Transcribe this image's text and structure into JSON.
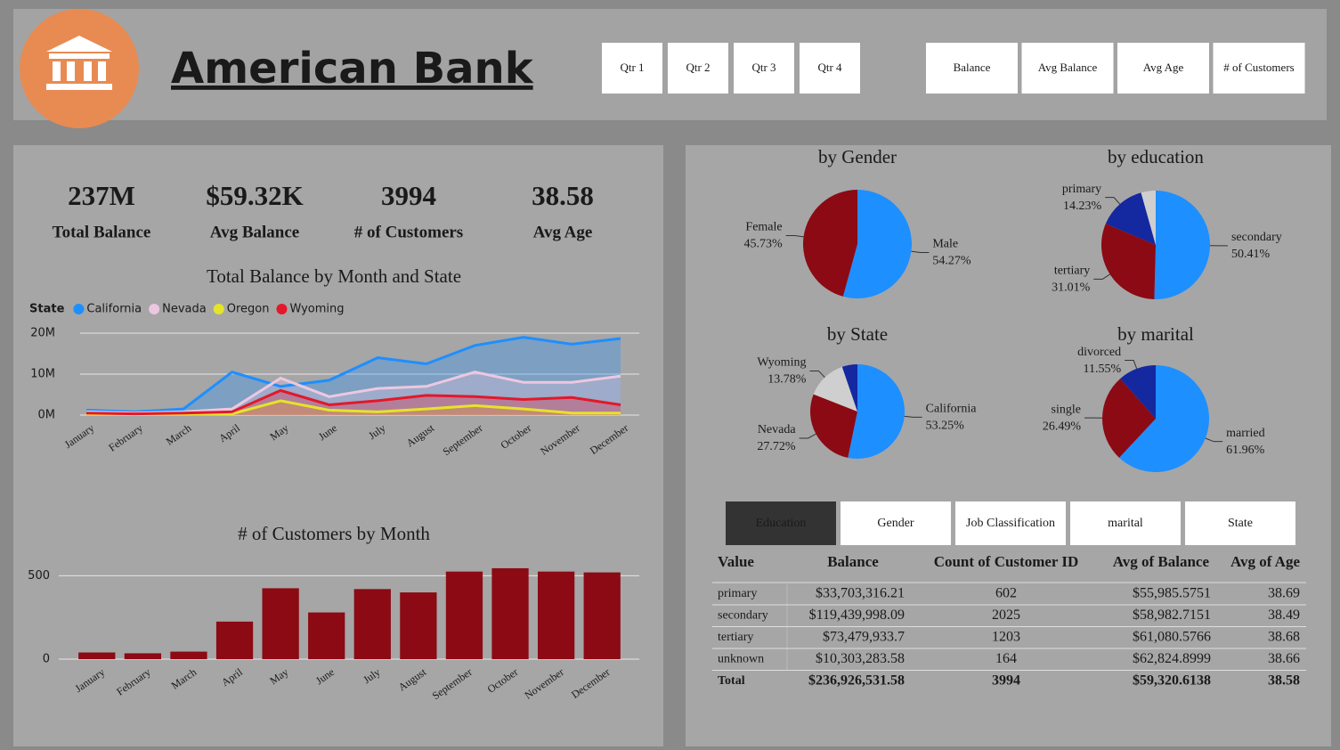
{
  "header": {
    "title": "American Bank"
  },
  "quarter_buttons": [
    "Qtr 1",
    "Qtr 2",
    "Qtr 3",
    "Qtr 4"
  ],
  "measure_buttons": [
    "Balance",
    "Avg Balance",
    "Avg Age",
    "# of Customers"
  ],
  "kpis": [
    {
      "value": "237M",
      "label": "Total Balance"
    },
    {
      "value": "$59.32K",
      "label": "Avg Balance"
    },
    {
      "value": "3994",
      "label": "# of Customers"
    },
    {
      "value": "38.58",
      "label": "Avg Age"
    }
  ],
  "chart_data": [
    {
      "type": "area",
      "title": "Total Balance by Month and State",
      "legend_title": "State",
      "categories": [
        "January",
        "February",
        "March",
        "April",
        "May",
        "June",
        "July",
        "August",
        "September",
        "October",
        "November",
        "December"
      ],
      "ylim": [
        0,
        20
      ],
      "yticks": [
        {
          "value": 0,
          "label": "0M"
        },
        {
          "value": 10,
          "label": "10M"
        },
        {
          "value": 20,
          "label": "20M"
        }
      ],
      "grid": true,
      "series": [
        {
          "name": "California",
          "color": "#1e8fff",
          "values": [
            1.2,
            0.8,
            1.5,
            10.5,
            7,
            8.5,
            14,
            12.5,
            17,
            19,
            17.3,
            18.7
          ]
        },
        {
          "name": "Nevada",
          "color": "#ecc8e0",
          "values": [
            0.8,
            0.5,
            0.8,
            1.5,
            9,
            4.5,
            6.5,
            7,
            10.5,
            8,
            8,
            9.5
          ]
        },
        {
          "name": "Oregon",
          "color": "#e4e42a",
          "values": [
            0.2,
            0.1,
            0.2,
            0.3,
            3.5,
            1.2,
            0.8,
            1.5,
            2.3,
            1.5,
            0.5,
            0.5
          ]
        },
        {
          "name": "Wyoming",
          "color": "#e3182a",
          "values": [
            0.5,
            0.3,
            0.5,
            0.8,
            6,
            2.5,
            3.5,
            4.8,
            4.5,
            3.8,
            4.3,
            2.5
          ]
        }
      ]
    },
    {
      "type": "bar",
      "title": "# of Customers by Month",
      "categories": [
        "January",
        "February",
        "March",
        "April",
        "May",
        "June",
        "July",
        "August",
        "September",
        "October",
        "November",
        "December"
      ],
      "values": [
        40,
        35,
        45,
        225,
        425,
        280,
        420,
        400,
        525,
        545,
        525,
        520
      ],
      "color": "#8b0a14",
      "ylim": [
        0,
        550
      ],
      "yticks": [
        0,
        500
      ],
      "grid": true
    },
    {
      "type": "pie",
      "title": "by Gender",
      "categories": [
        "Male",
        "Female"
      ],
      "values": [
        54.27,
        45.73
      ],
      "value_labels": [
        "54.27%",
        "45.73%"
      ],
      "colors": [
        "#1e8fff",
        "#8b0a14"
      ]
    },
    {
      "type": "pie",
      "title": "by education",
      "categories": [
        "secondary",
        "tertiary",
        "primary",
        null
      ],
      "values": [
        50.41,
        31.01,
        14.23,
        4.35
      ],
      "value_labels": [
        "50.41%",
        "31.01%",
        "14.23%",
        null
      ],
      "colors": [
        "#1e8fff",
        "#8b0a14",
        "#1428a0",
        "#cfcfcf"
      ]
    },
    {
      "type": "pie",
      "title": "by State",
      "categories": [
        "California",
        "Nevada",
        "Wyoming",
        null
      ],
      "values": [
        53.25,
        27.72,
        13.78,
        5.25
      ],
      "value_labels": [
        "53.25%",
        "27.72%",
        "13.78%",
        null
      ],
      "colors": [
        "#1e8fff",
        "#8b0a14",
        "#cfcfcf",
        "#1428a0"
      ]
    },
    {
      "type": "pie",
      "title": "by marital",
      "categories": [
        "married",
        "single",
        "divorced"
      ],
      "values": [
        61.96,
        26.49,
        11.55
      ],
      "value_labels": [
        "61.96%",
        "26.49%",
        "11.55%"
      ],
      "colors": [
        "#1e8fff",
        "#8b0a14",
        "#1428a0"
      ]
    }
  ],
  "table_tabs": {
    "tabs": [
      "Education",
      "Gender",
      "Job Classification",
      "marital",
      "State"
    ],
    "active": 0
  },
  "table": {
    "columns": [
      "Value",
      "Balance",
      "Count of Customer ID",
      "Avg of Balance",
      "Avg of Age"
    ],
    "rows": [
      [
        "primary",
        "$33,703,316.21",
        "602",
        "$55,985.5751",
        "38.69"
      ],
      [
        "secondary",
        "$119,439,998.09",
        "2025",
        "$58,982.7151",
        "38.49"
      ],
      [
        "tertiary",
        "$73,479,933.7",
        "1203",
        "$61,080.5766",
        "38.68"
      ],
      [
        "unknown",
        "$10,303,283.58",
        "164",
        "$62,824.8999",
        "38.66"
      ]
    ],
    "total": [
      "Total",
      "$236,926,531.58",
      "3994",
      "$59,320.6138",
      "38.58"
    ]
  }
}
